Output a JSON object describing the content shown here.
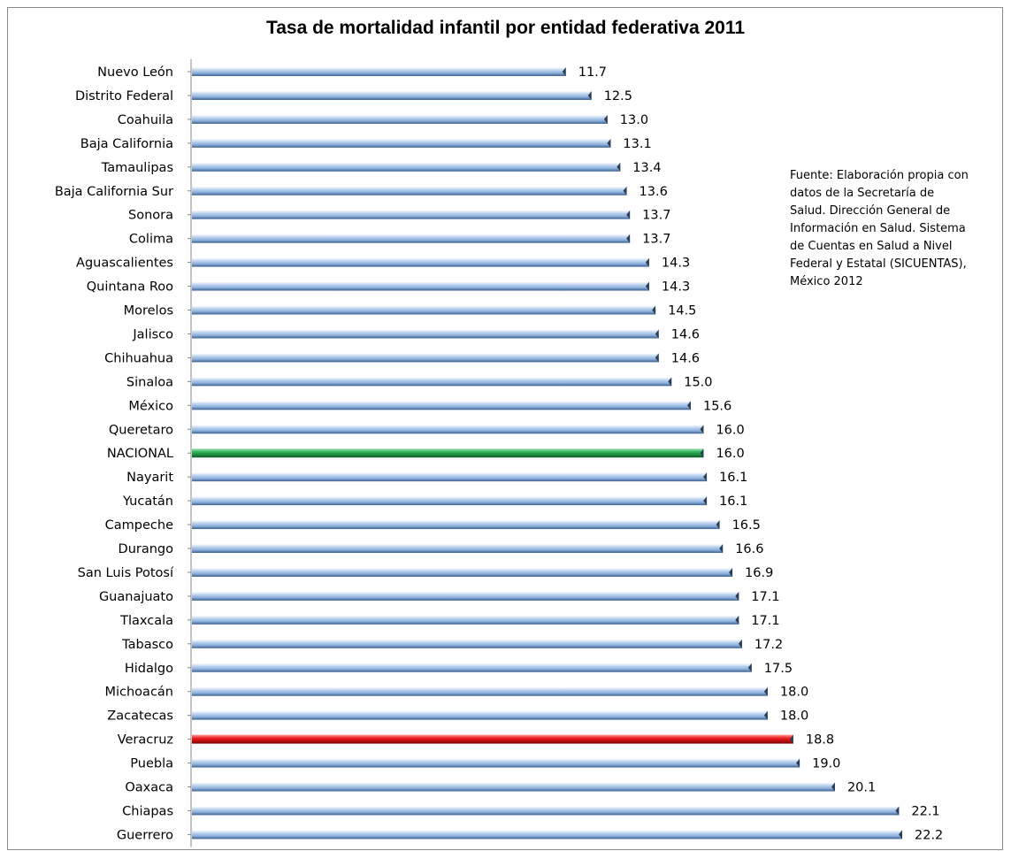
{
  "chart_data": {
    "type": "bar",
    "orientation": "horizontal",
    "title": "Tasa de mortalidad infantil por entidad federativa 2011",
    "categories": [
      "Nuevo León",
      "Distrito Federal",
      "Coahuila",
      "Baja California",
      "Tamaulipas",
      "Baja California Sur",
      "Sonora",
      "Colima",
      "Aguascalientes",
      "Quintana Roo",
      "Morelos",
      "Jalisco",
      "Chihuahua",
      "Sinaloa",
      "México",
      "Queretaro",
      "NACIONAL",
      "Nayarit",
      "Yucatán",
      "Campeche",
      "Durango",
      "San Luis Potosí",
      "Guanajuato",
      "Tlaxcala",
      "Tabasco",
      "Hidalgo",
      "Michoacán",
      "Zacatecas",
      "Veracruz",
      "Puebla",
      "Oaxaca",
      "Chiapas",
      "Guerrero"
    ],
    "values": [
      11.7,
      12.5,
      13.0,
      13.1,
      13.4,
      13.6,
      13.7,
      13.7,
      14.3,
      14.3,
      14.5,
      14.6,
      14.6,
      15.0,
      15.6,
      16.0,
      16.0,
      16.1,
      16.1,
      16.5,
      16.6,
      16.9,
      17.1,
      17.1,
      17.2,
      17.5,
      18.0,
      18.0,
      18.8,
      19.0,
      20.1,
      22.1,
      22.2
    ],
    "value_labels": [
      "11.7",
      "12.5",
      "13.0",
      "13.1",
      "13.4",
      "13.6",
      "13.7",
      "13.7",
      "14.3",
      "14.3",
      "14.5",
      "14.6",
      "14.6",
      "15.0",
      "15.6",
      "16.0",
      "16.0",
      "16.1",
      "16.1",
      "16.5",
      "16.6",
      "16.9",
      "17.1",
      "17.1",
      "17.2",
      "17.5",
      "18.0",
      "18.0",
      "18.8",
      "19.0",
      "20.1",
      "22.1",
      "22.2"
    ],
    "highlight": {
      "NACIONAL": "#1f9a4a",
      "Veracruz": "#e01818"
    },
    "bar_color": "#9dbde4",
    "xlim": [
      0,
      22.2
    ],
    "grid": false,
    "note": "Fuente: Elaboración propia con datos de la Secretaría de Salud. Dirección General de Información en Salud. Sistema de Cuentas en Salud a Nivel Federal y Estatal (SICUENTAS), México 2012"
  }
}
